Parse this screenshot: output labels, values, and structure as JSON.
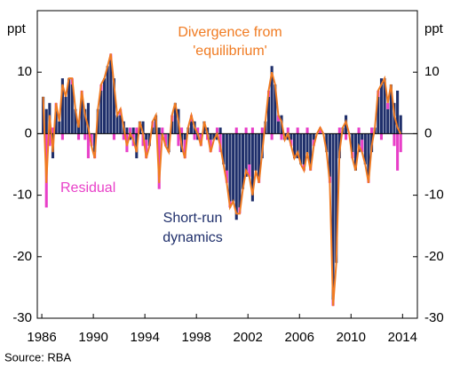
{
  "chart_data": {
    "type": "bar_line",
    "y_unit_left": "ppt",
    "y_unit_right": "ppt",
    "source": "Source: RBA",
    "annotations": {
      "divergence": [
        "Divergence from",
        "'equilibrium'"
      ],
      "residual": "Residual",
      "short_run": [
        "Short-run",
        "dynamics"
      ]
    },
    "xlim": [
      1985.65,
      2015.15
    ],
    "xticks": [
      1986,
      1990,
      1994,
      1998,
      2002,
      2006,
      2010,
      2014
    ],
    "ylim": [
      -30,
      20
    ],
    "yticks": [
      -30,
      -20,
      -10,
      0,
      10
    ],
    "x": [
      1986,
      1986.25,
      1986.5,
      1986.75,
      1987,
      1987.25,
      1987.5,
      1987.75,
      1988,
      1988.25,
      1988.5,
      1988.75,
      1989,
      1989.25,
      1989.5,
      1989.75,
      1990,
      1990.25,
      1990.5,
      1990.75,
      1991,
      1991.25,
      1991.5,
      1991.75,
      1992,
      1992.25,
      1992.5,
      1992.75,
      1993,
      1993.25,
      1993.5,
      1993.75,
      1994,
      1994.25,
      1994.5,
      1994.75,
      1995,
      1995.25,
      1995.5,
      1995.75,
      1996,
      1996.25,
      1996.5,
      1996.75,
      1997,
      1997.25,
      1997.5,
      1997.75,
      1998,
      1998.25,
      1998.5,
      1998.75,
      1999,
      1999.25,
      1999.5,
      1999.75,
      2000,
      2000.25,
      2000.5,
      2000.75,
      2001,
      2001.25,
      2001.5,
      2001.75,
      2002,
      2002.25,
      2002.5,
      2002.75,
      2003,
      2003.25,
      2003.5,
      2003.75,
      2004,
      2004.25,
      2004.5,
      2004.75,
      2005,
      2005.25,
      2005.5,
      2005.75,
      2006,
      2006.25,
      2006.5,
      2006.75,
      2007,
      2007.25,
      2007.5,
      2007.75,
      2008,
      2008.25,
      2008.5,
      2008.75,
      2009,
      2009.25,
      2009.5,
      2009.75,
      2010,
      2010.25,
      2010.5,
      2010.75,
      2011,
      2011.25,
      2011.5,
      2011.75,
      2012,
      2012.25,
      2012.5,
      2012.75,
      2013,
      2013.25,
      2013.5,
      2013.75
    ],
    "series": [
      {
        "name": "Short-run dynamics",
        "kind": "bar",
        "color": "#1f2f6b",
        "values": [
          6,
          4,
          5,
          -4,
          4,
          2,
          9,
          6,
          9,
          8,
          4,
          2,
          6,
          4,
          5,
          0,
          -3,
          4,
          7,
          9,
          11,
          12,
          9,
          3,
          3,
          2,
          1,
          -1,
          1,
          -4,
          2,
          2,
          -1,
          -2,
          1,
          3,
          1,
          -1,
          0,
          -3,
          2,
          5,
          4,
          -3,
          -1,
          1,
          2,
          2,
          -1,
          0,
          2,
          1,
          -1,
          -1,
          -1,
          1,
          -5,
          -6,
          -11,
          -11,
          -14,
          -12,
          -9,
          -7,
          -5,
          -11,
          -6,
          -7,
          -4,
          2,
          6,
          11,
          8,
          2,
          3,
          -1,
          -1,
          -1,
          -4,
          -4,
          -5,
          -5,
          -4,
          -5,
          -1,
          0,
          0,
          0,
          -3,
          -7,
          -27,
          -21,
          -4,
          1,
          3,
          0,
          -3,
          -6,
          -3,
          -1,
          -5,
          -7,
          -3,
          1,
          6,
          9,
          9,
          4,
          8,
          5,
          7,
          3
        ]
      },
      {
        "name": "Residual",
        "kind": "bar",
        "color": "#e83fc8",
        "values": [
          0,
          -12,
          -2,
          1,
          1,
          0,
          -1,
          0,
          0,
          1,
          0,
          -1,
          1,
          -1,
          -4,
          -2,
          -1,
          0,
          1,
          0,
          0,
          1,
          -1,
          0,
          1,
          -1,
          -3,
          1,
          -2,
          1,
          0,
          -2,
          -3,
          0,
          1,
          0,
          -9,
          1,
          -2,
          0,
          1,
          0,
          -2,
          1,
          -3,
          0,
          1,
          -1,
          1,
          -2,
          0,
          -1,
          -2,
          0,
          1,
          -3,
          0,
          -2,
          -1,
          0,
          1,
          -1,
          0,
          1,
          -2,
          1,
          0,
          -1,
          1,
          0,
          1,
          -1,
          0,
          1,
          -1,
          0,
          1,
          -1,
          0,
          1,
          0,
          -1,
          1,
          -1,
          -1,
          0,
          1,
          0,
          0,
          -1,
          -1,
          0,
          1,
          0,
          -1,
          0,
          -1,
          0,
          1,
          -2,
          0,
          -1,
          1,
          0,
          1,
          -1,
          0,
          1,
          0,
          -2,
          -6,
          -3
        ]
      },
      {
        "name": "Divergence from 'equilibrium'",
        "kind": "line",
        "color": "#f07b22",
        "values": [
          6,
          -8,
          3,
          -3,
          5,
          2,
          8,
          6,
          9,
          9,
          4,
          1,
          7,
          3,
          1,
          -2,
          -4,
          4,
          8,
          9,
          11,
          13,
          8,
          3,
          4,
          1,
          -2,
          0,
          -1,
          -3,
          2,
          0,
          -4,
          -2,
          2,
          3,
          -8,
          0,
          -2,
          -3,
          3,
          5,
          2,
          -2,
          -4,
          1,
          3,
          1,
          0,
          -2,
          2,
          0,
          -3,
          -1,
          0,
          -2,
          -5,
          -8,
          -12,
          -11,
          -13,
          -13,
          -9,
          -6,
          -7,
          -10,
          -6,
          -8,
          -3,
          2,
          7,
          10,
          8,
          3,
          2,
          -1,
          0,
          -2,
          -4,
          -3,
          -5,
          -6,
          -3,
          -6,
          -2,
          0,
          1,
          0,
          -3,
          -8,
          -28,
          -21,
          -3,
          1,
          2,
          0,
          -4,
          -6,
          -2,
          -3,
          -5,
          -8,
          -2,
          1,
          7,
          8,
          9,
          5,
          8,
          3,
          1,
          0
        ]
      }
    ]
  }
}
